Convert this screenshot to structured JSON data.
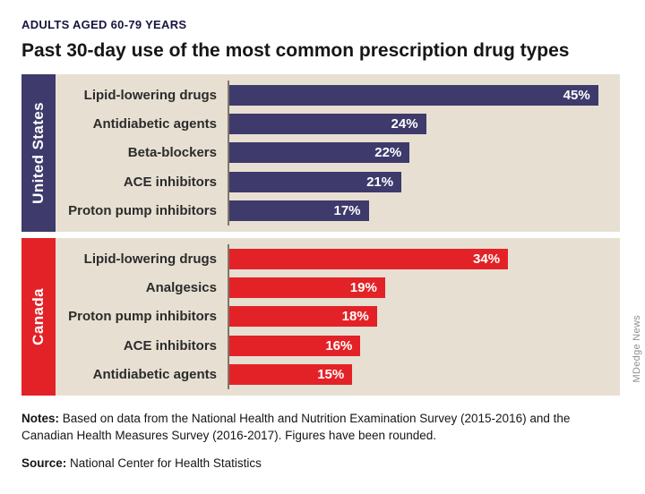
{
  "header": {
    "eyebrow": "ADULTS AGED 60-79 YEARS",
    "title": "Past 30-day use of the most common prescription drug types"
  },
  "chart_data": {
    "type": "bar",
    "orientation": "horizontal",
    "unit": "%",
    "xlim": [
      0,
      47
    ],
    "legend_position": "left-sidebars",
    "grid": false,
    "groups": [
      {
        "name": "United States",
        "color": "#3e3a6c",
        "categories": [
          "Lipid-lowering drugs",
          "Antidiabetic agents",
          "Beta-blockers",
          "ACE inhibitors",
          "Proton pump inhibitors"
        ],
        "values": [
          45,
          24,
          22,
          21,
          17
        ]
      },
      {
        "name": "Canada",
        "color": "#e32227",
        "categories": [
          "Lipid-lowering drugs",
          "Analgesics",
          "Proton pump inhibitors",
          "ACE inhibitors",
          "Antidiabetic agents"
        ],
        "values": [
          34,
          19,
          18,
          16,
          15
        ]
      }
    ]
  },
  "footer": {
    "notes_label": "Notes:",
    "notes_text": "Based on data from the National Health and Nutrition Examination Survey (2015-2016) and the Canadian Health Measures Survey (2016-2017). Figures have been rounded.",
    "source_label": "Source:",
    "source_text": "National Center for Health Statistics"
  },
  "credit": "MDedge News"
}
